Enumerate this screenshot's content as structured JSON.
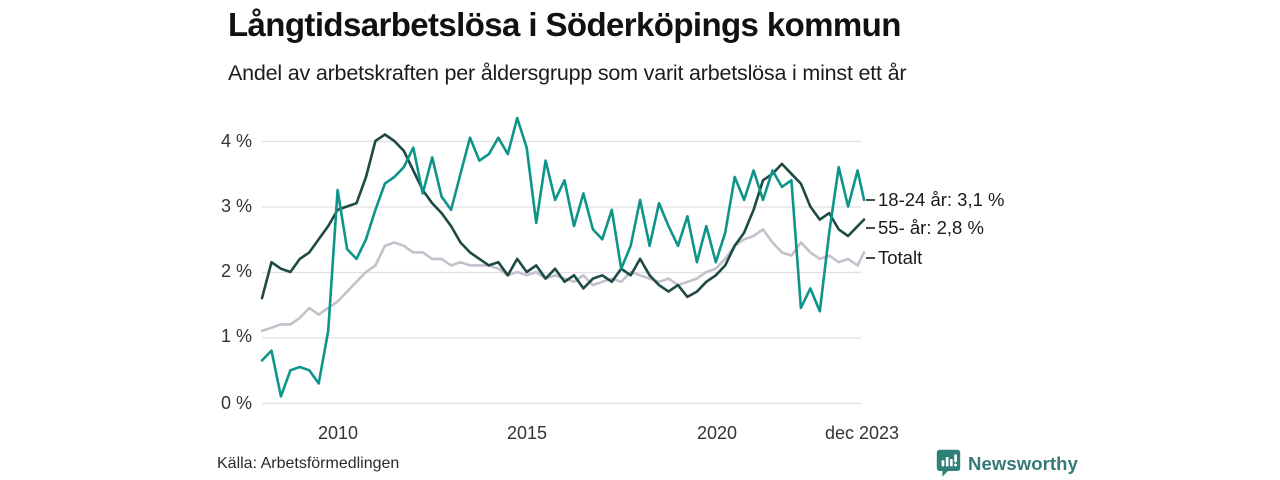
{
  "title": "Långtidsarbetslösa i Söderköpings kommun",
  "subtitle": "Andel av arbetskraften per åldersgrupp som varit arbetslösa i minst ett år",
  "source": "Källa: Arbetsförmedlingen",
  "branding": {
    "name": "Newsworthy",
    "icon": "bar-chart-speech-bubble-icon",
    "color": "#2e8078"
  },
  "colors": {
    "age_18_24": "#0e9488",
    "age_55_plus": "#1d4a44",
    "total": "#c4c1cc",
    "grid": "#e0e0e0",
    "tick_text": "#333333",
    "legend_text": "#1a1a1a"
  },
  "chart_data": {
    "type": "line",
    "title": "Långtidsarbetslösa i Söderköpings kommun",
    "subtitle": "Andel av arbetskraften per åldersgrupp som varit arbetslösa i minst ett år",
    "unit": "%",
    "x_unit": "decimal_year",
    "xlim": [
      2008,
      2023.92
    ],
    "ylim": [
      0,
      4.45
    ],
    "grid": "horizontal",
    "legend_position": "right-of-line-ends",
    "x": [
      2008,
      2008.25,
      2008.5,
      2008.75,
      2009,
      2009.25,
      2009.5,
      2009.75,
      2010,
      2010.25,
      2010.5,
      2010.75,
      2011,
      2011.25,
      2011.5,
      2011.75,
      2012,
      2012.25,
      2012.5,
      2012.75,
      2013,
      2013.25,
      2013.5,
      2013.75,
      2014,
      2014.25,
      2014.5,
      2014.75,
      2015,
      2015.25,
      2015.5,
      2015.75,
      2016,
      2016.25,
      2016.5,
      2016.75,
      2017,
      2017.25,
      2017.5,
      2017.75,
      2018,
      2018.25,
      2018.5,
      2018.75,
      2019,
      2019.25,
      2019.5,
      2019.75,
      2020,
      2020.25,
      2020.5,
      2020.75,
      2021,
      2021.25,
      2021.5,
      2021.75,
      2022,
      2022.25,
      2022.5,
      2022.75,
      2023,
      2023.25,
      2023.5,
      2023.75,
      2023.92
    ],
    "series": [
      {
        "name": "18-24 år",
        "legend_label": "18-24 år: 3,1 %",
        "last_value": 3.1,
        "color_key": "age_18_24",
        "values": [
          0.65,
          0.8,
          0.1,
          0.5,
          0.55,
          0.5,
          0.3,
          1.1,
          3.25,
          2.35,
          2.2,
          2.5,
          2.95,
          3.35,
          3.45,
          3.6,
          3.9,
          3.2,
          3.75,
          3.15,
          2.95,
          3.5,
          4.05,
          3.7,
          3.8,
          4.05,
          3.8,
          4.35,
          3.9,
          2.75,
          3.7,
          3.1,
          3.4,
          2.7,
          3.2,
          2.65,
          2.5,
          2.95,
          2.05,
          2.4,
          3.1,
          2.4,
          3.05,
          2.7,
          2.4,
          2.85,
          2.15,
          2.7,
          2.15,
          2.6,
          3.45,
          3.1,
          3.55,
          3.1,
          3.55,
          3.3,
          3.4,
          1.45,
          1.75,
          1.4,
          2.6,
          3.6,
          3.0,
          3.55,
          3.1
        ]
      },
      {
        "name": "55- år",
        "legend_label": "55- år: 2,8 %",
        "last_value": 2.8,
        "color_key": "age_55_plus",
        "values": [
          1.6,
          2.15,
          2.05,
          2.0,
          2.2,
          2.3,
          2.5,
          2.7,
          2.95,
          3.0,
          3.05,
          3.45,
          4.0,
          4.1,
          4.0,
          3.85,
          3.55,
          3.25,
          3.05,
          2.9,
          2.7,
          2.45,
          2.3,
          2.2,
          2.1,
          2.15,
          1.95,
          2.2,
          2.0,
          2.1,
          1.9,
          2.05,
          1.85,
          1.95,
          1.75,
          1.9,
          1.95,
          1.85,
          2.05,
          1.95,
          2.2,
          1.95,
          1.8,
          1.7,
          1.8,
          1.62,
          1.7,
          1.85,
          1.95,
          2.1,
          2.4,
          2.6,
          2.95,
          3.4,
          3.5,
          3.65,
          3.5,
          3.35,
          3.0,
          2.8,
          2.9,
          2.65,
          2.55,
          2.7,
          2.8
        ]
      },
      {
        "name": "Totalt",
        "legend_label": "Totalt",
        "color_key": "total",
        "values": [
          1.1,
          1.15,
          1.2,
          1.2,
          1.3,
          1.45,
          1.35,
          1.45,
          1.55,
          1.7,
          1.85,
          2.0,
          2.1,
          2.4,
          2.45,
          2.4,
          2.3,
          2.3,
          2.2,
          2.2,
          2.1,
          2.15,
          2.1,
          2.1,
          2.1,
          2.05,
          1.95,
          2.0,
          1.95,
          2.0,
          1.9,
          1.95,
          1.9,
          1.85,
          1.95,
          1.8,
          1.85,
          1.9,
          1.85,
          2.0,
          1.95,
          1.9,
          1.85,
          1.9,
          1.8,
          1.85,
          1.9,
          2.0,
          2.05,
          2.2,
          2.4,
          2.5,
          2.55,
          2.65,
          2.45,
          2.3,
          2.25,
          2.45,
          2.3,
          2.2,
          2.25,
          2.15,
          2.2,
          2.1,
          2.3
        ]
      }
    ],
    "xticks": [
      {
        "value": 2010,
        "label": "2010"
      },
      {
        "value": 2015,
        "label": "2015"
      },
      {
        "value": 2020,
        "label": "2020"
      },
      {
        "value": 2023.92,
        "label": "dec 2023"
      }
    ],
    "yticks": [
      {
        "value": 4,
        "label": "4 %"
      },
      {
        "value": 3,
        "label": "3 %"
      },
      {
        "value": 2,
        "label": "2 %"
      },
      {
        "value": 1,
        "label": "1 %"
      },
      {
        "value": 0,
        "label": "0 %"
      }
    ]
  }
}
